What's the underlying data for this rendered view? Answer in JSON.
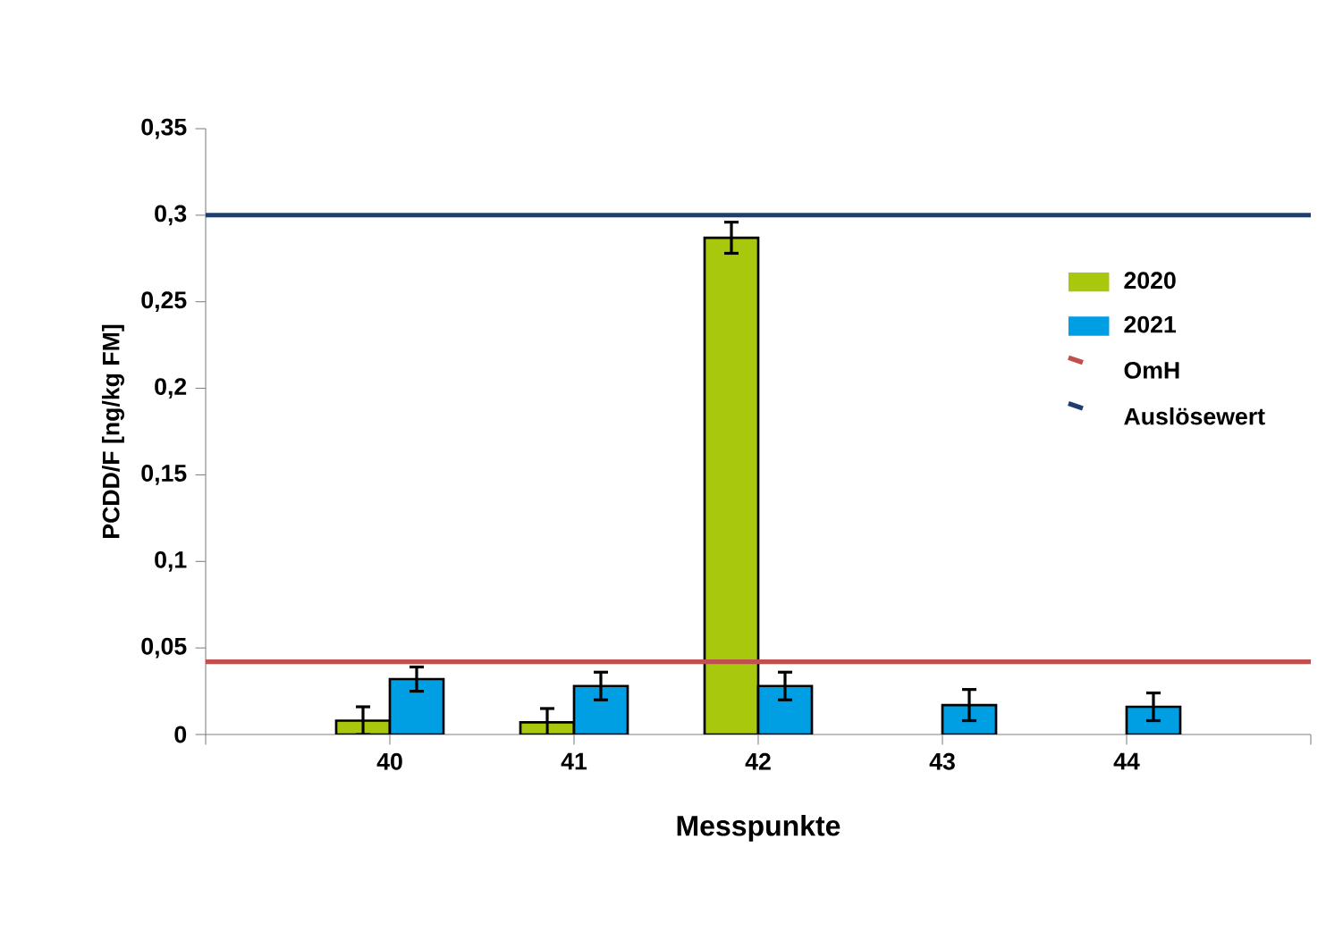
{
  "chart_data": {
    "type": "bar",
    "xlabel": "Messpunkte",
    "ylabel": "PCDD/F [ng/kg FM]",
    "categories": [
      null,
      "40",
      "41",
      "42",
      "43",
      "44",
      null
    ],
    "series": [
      {
        "name": "2020",
        "color": "#a8c80e",
        "values": [
          null,
          0.008,
          0.007,
          0.287,
          null,
          null,
          null
        ],
        "errors": [
          null,
          0.008,
          0.008,
          0.009,
          null,
          null,
          null
        ]
      },
      {
        "name": "2021",
        "color": "#009fe3",
        "values": [
          null,
          0.032,
          0.028,
          0.028,
          0.017,
          0.016,
          null
        ],
        "errors": [
          null,
          0.007,
          0.008,
          0.008,
          0.009,
          0.008,
          null
        ]
      }
    ],
    "ref_lines": [
      {
        "axis": "y",
        "value": 0.042,
        "label": "OmH",
        "color": "#c0504d"
      },
      {
        "axis": "y",
        "value": 0.3,
        "label": "Auslösewert",
        "color": "#1f3e6e"
      }
    ],
    "ylim": [
      0,
      0.35
    ],
    "yticks": [
      0,
      {
        "value": 0.05,
        "label": "0,05"
      },
      {
        "value": 0.1,
        "label": "0,1"
      },
      {
        "value": 0.15,
        "label": "0,15"
      },
      {
        "value": 0.2,
        "label": "0,2"
      },
      {
        "value": 0.25,
        "label": "0,25"
      },
      {
        "value": 0.3,
        "label": "0,3"
      },
      {
        "value": 0.35,
        "label": "0,35"
      }
    ],
    "legend": "top right",
    "grid": false
  }
}
